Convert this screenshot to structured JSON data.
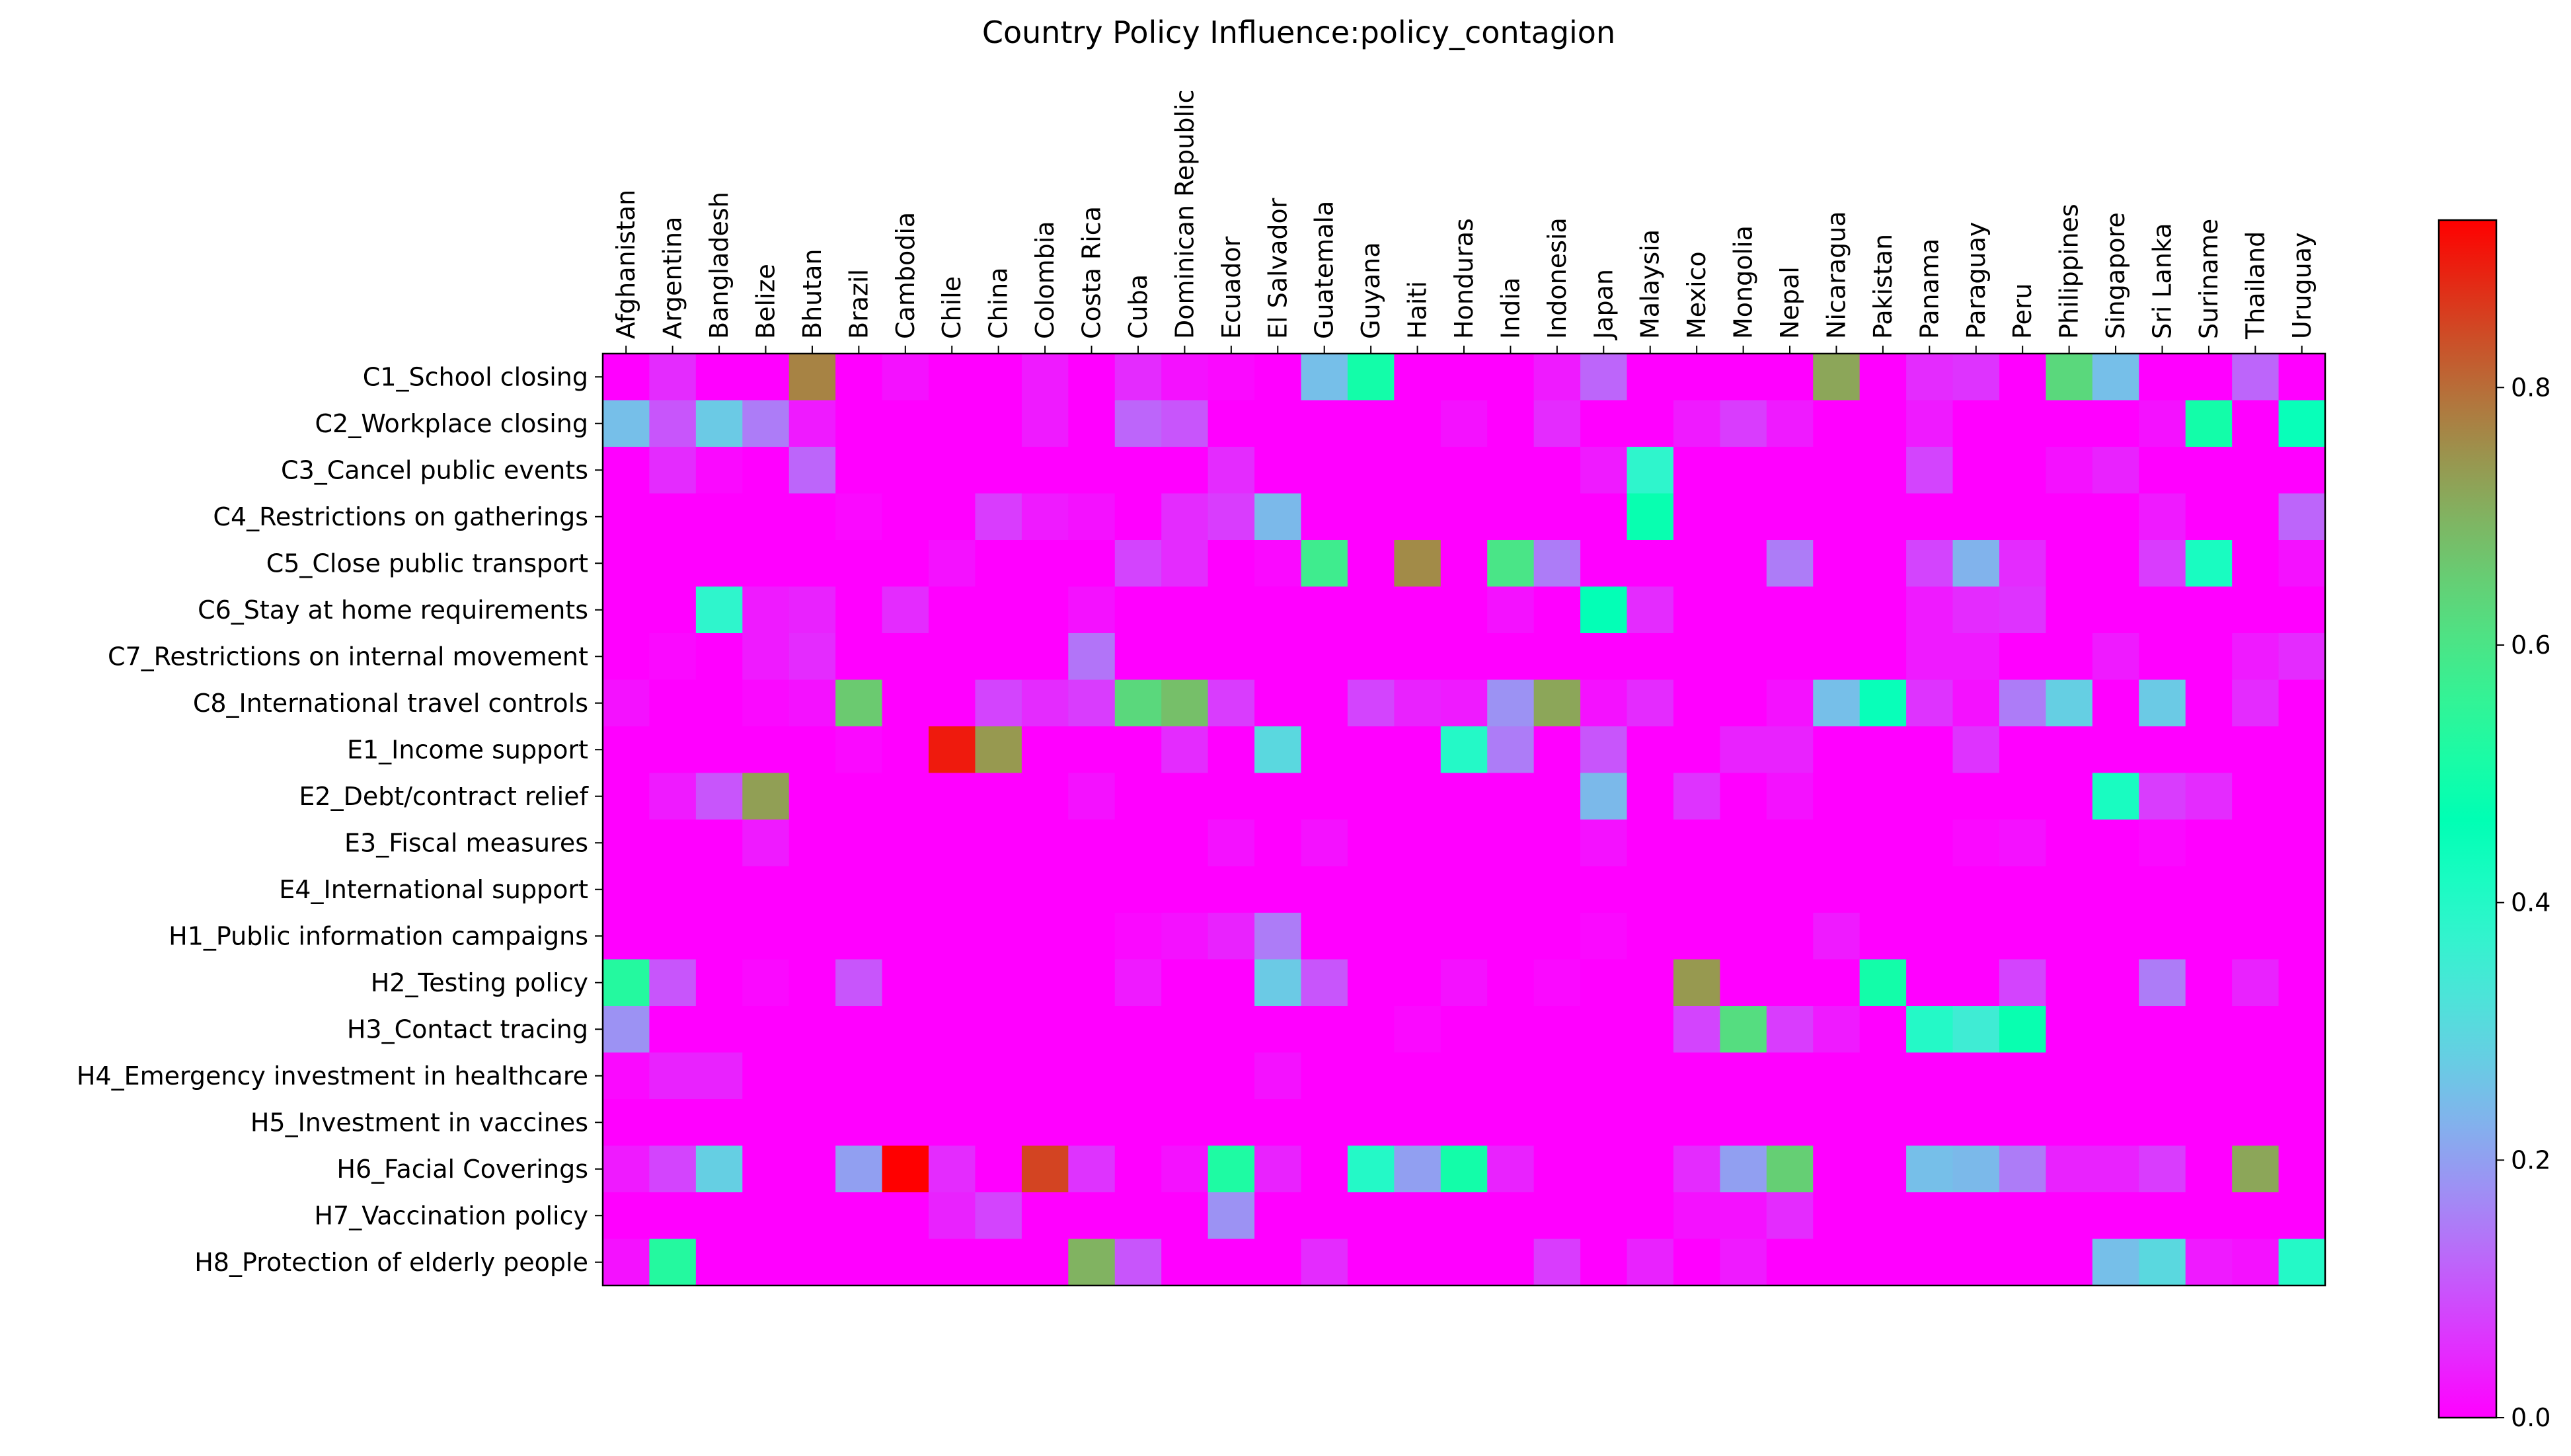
{
  "chart_data": {
    "type": "heatmap",
    "title": "Country Policy Influence:policy_contagion",
    "x_categories": [
      "Afghanistan",
      "Argentina",
      "Bangladesh",
      "Belize",
      "Bhutan",
      "Brazil",
      "Cambodia",
      "Chile",
      "China",
      "Colombia",
      "Costa Rica",
      "Cuba",
      "Dominican Republic",
      "Ecuador",
      "El Salvador",
      "Guatemala",
      "Guyana",
      "Haiti",
      "Honduras",
      "India",
      "Indonesia",
      "Japan",
      "Malaysia",
      "Mexico",
      "Mongolia",
      "Nepal",
      "Nicaragua",
      "Pakistan",
      "Panama",
      "Paraguay",
      "Peru",
      "Philippines",
      "Singapore",
      "Sri Lanka",
      "Suriname",
      "Thailand",
      "Uruguay"
    ],
    "y_categories": [
      "C1_School closing",
      "C2_Workplace closing",
      "C3_Cancel public events",
      "C4_Restrictions on gatherings",
      "C5_Close public transport",
      "C6_Stay at home requirements",
      "C7_Restrictions on internal movement",
      "C8_International travel controls",
      "E1_Income support",
      "E2_Debt/contract relief",
      "E3_Fiscal measures",
      "E4_International support",
      "H1_Public information campaigns",
      "H2_Testing policy",
      "H3_Contact tracing",
      "H4_Emergency investment in healthcare",
      "H5_Investment in vaccines",
      "H6_Facial Coverings",
      "H7_Vaccination policy",
      "H8_Protection of elderly people"
    ],
    "values": [
      [
        0.0,
        0.05,
        0.0,
        0.0,
        0.77,
        0.0,
        0.02,
        0.0,
        0.0,
        0.03,
        0.0,
        0.05,
        0.02,
        0.01,
        0.0,
        0.25,
        0.5,
        0.0,
        0.0,
        0.0,
        0.03,
        0.12,
        0.0,
        0.0,
        0.0,
        0.0,
        0.72,
        0.0,
        0.05,
        0.06,
        0.0,
        0.63,
        0.25,
        0.0,
        0.0,
        0.12,
        0.0
      ],
      [
        0.25,
        0.1,
        0.27,
        0.15,
        0.03,
        0.0,
        0.0,
        0.0,
        0.0,
        0.03,
        0.0,
        0.12,
        0.1,
        0.0,
        0.0,
        0.0,
        0.0,
        0.0,
        0.02,
        0.0,
        0.05,
        0.0,
        0.0,
        0.03,
        0.07,
        0.03,
        0.0,
        0.0,
        0.03,
        0.0,
        0.0,
        0.0,
        0.0,
        0.02,
        0.5,
        0.0,
        0.45
      ],
      [
        0.0,
        0.05,
        0.01,
        0.0,
        0.12,
        0.0,
        0.0,
        0.0,
        0.0,
        0.0,
        0.0,
        0.0,
        0.0,
        0.05,
        0.0,
        0.0,
        0.0,
        0.0,
        0.0,
        0.0,
        0.0,
        0.03,
        0.38,
        0.0,
        0.0,
        0.0,
        0.0,
        0.0,
        0.08,
        0.0,
        0.0,
        0.02,
        0.04,
        0.0,
        0.0,
        0.0,
        0.0
      ],
      [
        0.0,
        0.0,
        0.0,
        0.0,
        0.0,
        0.01,
        0.0,
        0.0,
        0.07,
        0.03,
        0.02,
        0.0,
        0.05,
        0.07,
        0.24,
        0.0,
        0.0,
        0.0,
        0.0,
        0.0,
        0.0,
        0.0,
        0.48,
        0.0,
        0.0,
        0.0,
        0.0,
        0.0,
        0.0,
        0.0,
        0.0,
        0.0,
        0.0,
        0.03,
        0.0,
        0.0,
        0.12
      ],
      [
        0.0,
        0.0,
        0.0,
        0.0,
        0.0,
        0.0,
        0.0,
        0.02,
        0.0,
        0.0,
        0.0,
        0.08,
        0.05,
        0.0,
        0.01,
        0.58,
        0.0,
        0.76,
        0.0,
        0.6,
        0.15,
        0.0,
        0.0,
        0.0,
        0.0,
        0.15,
        0.0,
        0.0,
        0.08,
        0.23,
        0.05,
        0.0,
        0.0,
        0.07,
        0.42,
        0.0,
        0.02
      ],
      [
        0.0,
        0.0,
        0.38,
        0.03,
        0.04,
        0.0,
        0.05,
        0.0,
        0.0,
        0.0,
        0.02,
        0.0,
        0.0,
        0.0,
        0.0,
        0.0,
        0.0,
        0.0,
        0.0,
        0.02,
        0.0,
        0.46,
        0.05,
        0.0,
        0.0,
        0.0,
        0.0,
        0.0,
        0.03,
        0.05,
        0.06,
        0.0,
        0.0,
        0.0,
        0.0,
        0.0,
        0.0
      ],
      [
        0.0,
        0.01,
        0.0,
        0.03,
        0.05,
        0.0,
        0.0,
        0.0,
        0.0,
        0.0,
        0.14,
        0.0,
        0.0,
        0.0,
        0.0,
        0.0,
        0.0,
        0.0,
        0.0,
        0.0,
        0.0,
        0.0,
        0.0,
        0.0,
        0.0,
        0.0,
        0.0,
        0.0,
        0.03,
        0.03,
        0.0,
        0.0,
        0.03,
        0.0,
        0.0,
        0.03,
        0.05
      ],
      [
        0.02,
        0.0,
        0.0,
        0.01,
        0.02,
        0.66,
        0.0,
        0.0,
        0.08,
        0.05,
        0.07,
        0.63,
        0.68,
        0.07,
        0.0,
        0.0,
        0.08,
        0.04,
        0.03,
        0.18,
        0.72,
        0.02,
        0.05,
        0.0,
        0.0,
        0.02,
        0.25,
        0.45,
        0.06,
        0.02,
        0.15,
        0.28,
        0.0,
        0.27,
        0.0,
        0.05,
        0.0
      ],
      [
        0.0,
        0.0,
        0.0,
        0.0,
        0.0,
        0.01,
        0.0,
        0.9,
        0.74,
        0.0,
        0.0,
        0.0,
        0.05,
        0.0,
        0.3,
        0.0,
        0.0,
        0.0,
        0.4,
        0.15,
        0.0,
        0.1,
        0.0,
        0.0,
        0.04,
        0.04,
        0.0,
        0.0,
        0.0,
        0.06,
        0.0,
        0.0,
        0.0,
        0.0,
        0.0,
        0.0,
        0.0
      ],
      [
        0.0,
        0.03,
        0.1,
        0.73,
        0.0,
        0.0,
        0.0,
        0.0,
        0.0,
        0.0,
        0.02,
        0.0,
        0.0,
        0.0,
        0.0,
        0.0,
        0.0,
        0.0,
        0.0,
        0.0,
        0.0,
        0.24,
        0.0,
        0.06,
        0.0,
        0.02,
        0.0,
        0.0,
        0.0,
        0.0,
        0.0,
        0.0,
        0.42,
        0.07,
        0.05,
        0.0,
        0.0
      ],
      [
        0.0,
        0.0,
        0.0,
        0.03,
        0.0,
        0.0,
        0.0,
        0.0,
        0.0,
        0.0,
        0.0,
        0.0,
        0.0,
        0.02,
        0.0,
        0.02,
        0.0,
        0.0,
        0.0,
        0.0,
        0.0,
        0.02,
        0.0,
        0.0,
        0.0,
        0.0,
        0.0,
        0.0,
        0.0,
        0.01,
        0.02,
        0.0,
        0.0,
        0.01,
        0.0,
        0.0,
        0.0
      ],
      [
        0.0,
        0.0,
        0.0,
        0.0,
        0.0,
        0.0,
        0.0,
        0.0,
        0.0,
        0.0,
        0.0,
        0.0,
        0.0,
        0.0,
        0.0,
        0.0,
        0.0,
        0.0,
        0.0,
        0.0,
        0.0,
        0.0,
        0.0,
        0.0,
        0.0,
        0.0,
        0.0,
        0.0,
        0.0,
        0.0,
        0.0,
        0.0,
        0.0,
        0.0,
        0.0,
        0.0,
        0.0
      ],
      [
        0.0,
        0.0,
        0.0,
        0.0,
        0.0,
        0.0,
        0.0,
        0.0,
        0.0,
        0.0,
        0.0,
        0.01,
        0.02,
        0.04,
        0.15,
        0.0,
        0.0,
        0.0,
        0.0,
        0.0,
        0.0,
        0.01,
        0.0,
        0.0,
        0.0,
        0.0,
        0.03,
        0.0,
        0.0,
        0.0,
        0.0,
        0.0,
        0.0,
        0.0,
        0.0,
        0.0,
        0.0
      ],
      [
        0.53,
        0.1,
        0.0,
        0.01,
        0.0,
        0.1,
        0.0,
        0.0,
        0.0,
        0.0,
        0.0,
        0.03,
        0.0,
        0.0,
        0.27,
        0.1,
        0.0,
        0.0,
        0.02,
        0.0,
        0.01,
        0.0,
        0.0,
        0.74,
        0.0,
        0.0,
        0.0,
        0.5,
        0.0,
        0.0,
        0.08,
        0.0,
        0.0,
        0.15,
        0.0,
        0.04,
        0.0
      ],
      [
        0.18,
        0.0,
        0.0,
        0.0,
        0.0,
        0.0,
        0.0,
        0.0,
        0.0,
        0.0,
        0.0,
        0.0,
        0.0,
        0.0,
        0.0,
        0.0,
        0.0,
        0.01,
        0.0,
        0.0,
        0.0,
        0.0,
        0.0,
        0.08,
        0.62,
        0.07,
        0.03,
        0.0,
        0.4,
        0.35,
        0.48,
        0.0,
        0.0,
        0.0,
        0.0,
        0.0,
        0.0
      ],
      [
        0.01,
        0.04,
        0.04,
        0.0,
        0.0,
        0.0,
        0.0,
        0.0,
        0.0,
        0.0,
        0.0,
        0.0,
        0.0,
        0.0,
        0.02,
        0.0,
        0.0,
        0.0,
        0.0,
        0.0,
        0.0,
        0.0,
        0.0,
        0.0,
        0.0,
        0.0,
        0.0,
        0.0,
        0.0,
        0.0,
        0.0,
        0.0,
        0.0,
        0.0,
        0.0,
        0.0,
        0.0
      ],
      [
        0.0,
        0.0,
        0.0,
        0.0,
        0.0,
        0.0,
        0.0,
        0.0,
        0.0,
        0.0,
        0.0,
        0.0,
        0.0,
        0.0,
        0.0,
        0.0,
        0.0,
        0.0,
        0.0,
        0.0,
        0.0,
        0.0,
        0.0,
        0.0,
        0.0,
        0.0,
        0.0,
        0.0,
        0.0,
        0.0,
        0.0,
        0.0,
        0.0,
        0.0,
        0.0,
        0.0,
        0.0
      ],
      [
        0.03,
        0.08,
        0.28,
        0.0,
        0.0,
        0.2,
        0.93,
        0.05,
        0.0,
        0.85,
        0.06,
        0.0,
        0.02,
        0.52,
        0.04,
        0.0,
        0.4,
        0.2,
        0.5,
        0.04,
        0.0,
        0.0,
        0.0,
        0.05,
        0.2,
        0.65,
        0.0,
        0.0,
        0.25,
        0.24,
        0.15,
        0.04,
        0.04,
        0.07,
        0.0,
        0.72,
        0.0
      ],
      [
        0.0,
        0.0,
        0.0,
        0.0,
        0.0,
        0.0,
        0.0,
        0.04,
        0.08,
        0.0,
        0.0,
        0.0,
        0.0,
        0.18,
        0.0,
        0.0,
        0.0,
        0.0,
        0.0,
        0.0,
        0.0,
        0.0,
        0.0,
        0.02,
        0.02,
        0.05,
        0.0,
        0.0,
        0.0,
        0.0,
        0.0,
        0.0,
        0.0,
        0.0,
        0.0,
        0.0,
        0.0
      ],
      [
        0.02,
        0.53,
        0.0,
        0.0,
        0.0,
        0.0,
        0.0,
        0.0,
        0.0,
        0.0,
        0.7,
        0.1,
        0.0,
        0.0,
        0.0,
        0.05,
        0.0,
        0.0,
        0.0,
        0.0,
        0.07,
        0.0,
        0.04,
        0.0,
        0.03,
        0.0,
        0.0,
        0.0,
        0.0,
        0.0,
        0.0,
        0.0,
        0.25,
        0.3,
        0.03,
        0.02,
        0.4
      ]
    ],
    "colormap": "rainbow",
    "vmin": 0.0,
    "vmax": 0.93,
    "colorbar_ticks": [
      "0.0",
      "0.2",
      "0.4",
      "0.6",
      "0.8"
    ],
    "colorbar_tick_values": [
      0.0,
      0.2,
      0.4,
      0.6,
      0.8
    ]
  }
}
